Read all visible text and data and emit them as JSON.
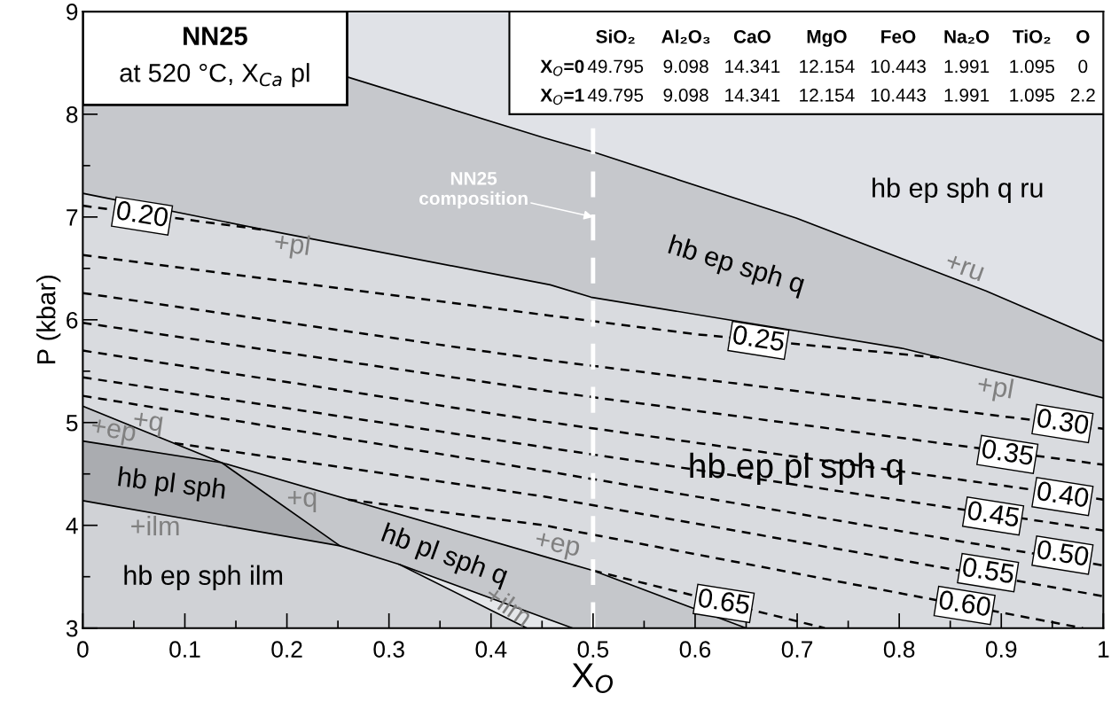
{
  "chart_data": {
    "type": "line",
    "title": "NN25",
    "subtitle": "at 520 °C, X$_{Ca}$ pl",
    "xlabel": "X$_{O}$",
    "ylabel": "P (kbar)",
    "xlim": [
      0,
      1
    ],
    "ylim": [
      3,
      9
    ],
    "xticks": [
      0,
      {
        "value": 0.05,
        "label": null
      },
      0.1,
      {
        "value": 0.15,
        "label": null
      },
      0.2,
      {
        "value": 0.25,
        "label": null
      },
      0.3,
      {
        "value": 0.35,
        "label": null
      },
      0.4,
      {
        "value": 0.45,
        "label": null
      },
      0.5,
      {
        "value": 0.55,
        "label": null
      },
      0.6,
      {
        "value": 0.65,
        "label": null
      },
      0.7,
      {
        "value": 0.75,
        "label": null
      },
      0.8,
      {
        "value": 0.85,
        "label": null
      },
      0.9,
      {
        "value": 0.95,
        "label": null
      },
      1
    ],
    "yticks": [
      3,
      {
        "value": 3.5,
        "label": null
      },
      4,
      {
        "value": 4.5,
        "label": null
      },
      5,
      {
        "value": 5.5,
        "label": null
      },
      6,
      {
        "value": 6.5,
        "label": null
      },
      7,
      {
        "value": 7.5,
        "label": null
      },
      8,
      {
        "value": 8.5,
        "label": null
      },
      9
    ],
    "series": [
      {
        "type": "area",
        "color": "#c6c8cc",
        "x": [
          0,
          0.26,
          0.452,
          0.501,
          0.699,
          0.885,
          1.0
        ],
        "values": [
          8.95,
          8.36,
          7.77,
          7.63,
          6.99,
          6.28,
          5.79
        ]
      },
      {
        "type": "area",
        "color": "#d9dbdf",
        "x": [
          0,
          0.181,
          0.458,
          0.498,
          0.804,
          1.0
        ],
        "values": [
          7.23,
          6.87,
          6.34,
          6.22,
          5.72,
          5.24
        ]
      },
      {
        "type": "area",
        "color": "#c5c7cb",
        "x": [
          0,
          0.136,
          0.458,
          0.5,
          0.65
        ],
        "values": [
          5.16,
          4.61,
          3.68,
          3.56,
          3.0
        ]
      },
      {
        "type": "area",
        "color": "#aaacb0",
        "x": [
          0,
          0.136,
          0.252
        ],
        "values": [
          4.82,
          4.61,
          3.8
        ]
      },
      {
        "type": "area",
        "color": "#e4e6e9",
        "x": [
          0.31,
          0.458,
          0.48
        ],
        "values": [
          3.62,
          3.08,
          3.0
        ]
      },
      {
        "type": "area",
        "color": "#d0d2d6",
        "x": [
          0,
          0.252,
          0.31,
          0.435
        ],
        "values": [
          4.24,
          3.8,
          3.62,
          3.0
        ]
      },
      {
        "color": "#000000",
        "line_style": "dashed",
        "x": [
          0,
          0.181
        ],
        "values": [
          7.11,
          6.87
        ]
      },
      {
        "color": "#000000",
        "line_style": "dashed",
        "x": [
          0,
          0.458,
          0.6,
          0.84
        ],
        "values": [
          6.63,
          6.04,
          5.86,
          5.63
        ]
      },
      {
        "color": "#000000",
        "line_style": "dashed",
        "x": [
          0,
          0.452,
          1
        ],
        "values": [
          6.26,
          5.61,
          4.94
        ]
      },
      {
        "color": "#000000",
        "line_style": "dashed",
        "x": [
          0,
          0.452,
          1
        ],
        "values": [
          5.97,
          5.31,
          4.59
        ]
      },
      {
        "color": "#000000",
        "line_style": "dashed",
        "x": [
          0,
          0.452,
          1
        ],
        "values": [
          5.7,
          5.01,
          4.25
        ]
      },
      {
        "color": "#000000",
        "line_style": "dashed",
        "x": [
          0,
          0.452,
          1
        ],
        "values": [
          5.44,
          4.76,
          3.95
        ]
      },
      {
        "color": "#000000",
        "line_style": "dashed",
        "x": [
          0,
          0.452,
          1
        ],
        "values": [
          5.26,
          4.53,
          3.61
        ]
      },
      {
        "color": "#000000",
        "line_style": "dashed",
        "x": [
          0.09,
          0.452,
          1
        ],
        "values": [
          4.8,
          4.28,
          3.31
        ]
      },
      {
        "color": "#000000",
        "line_style": "dashed",
        "x": [
          0.26,
          0.452,
          0.98
        ],
        "values": [
          4.25,
          4.0,
          3.0
        ]
      },
      {
        "color": "#000000",
        "line_style": "dashed",
        "x": [
          0.5,
          0.727
        ],
        "values": [
          3.56,
          3.0
        ]
      }
    ],
    "ref_lines": [
      {
        "axis": "x",
        "value": 0.5,
        "color": "#ffffff",
        "line_style": "dashed"
      }
    ],
    "annotations": [
      "hb ep sph q ru",
      "hb ep sph q",
      "+ru",
      "+pl",
      "+pl",
      "hb ep pl sph q",
      "+ep",
      "+q",
      "hb pl sph",
      "+q",
      "+ilm",
      "hb ep sph ilm",
      "hb pl sph q",
      "+ep",
      "+ilm",
      {
        "text": "0.20",
        "x": 0.058,
        "y": 7.01
      },
      {
        "text": "0.25",
        "x": 0.662,
        "y": 5.8
      },
      {
        "text": "0.30",
        "x": 0.96,
        "y": 4.99
      },
      {
        "text": "0.35",
        "x": 0.906,
        "y": 4.69
      },
      {
        "text": "0.40",
        "x": 0.96,
        "y": 4.28
      },
      {
        "text": "0.45",
        "x": 0.892,
        "y": 4.09
      },
      {
        "text": "0.50",
        "x": 0.96,
        "y": 3.71
      },
      {
        "text": "0.55",
        "x": 0.887,
        "y": 3.54
      },
      {
        "text": "0.60",
        "x": 0.864,
        "y": 3.22
      },
      {
        "text": "0.65",
        "x": 0.628,
        "y": 3.24
      },
      {
        "text": "NN25\ncomposition",
        "x": 0.5,
        "y": 7.0
      },
      "SiO₂ Al₂O₃ CaO MgO FeO Na₂O TiO₂ O",
      "X$_{O}$=0 49.795 9.098 14.341 12.154 10.443 1.991 1.095 0",
      "X$_{O}$=1 49.795 9.098 14.341 12.154 10.443 1.991 1.095 2.2"
    ]
  }
}
